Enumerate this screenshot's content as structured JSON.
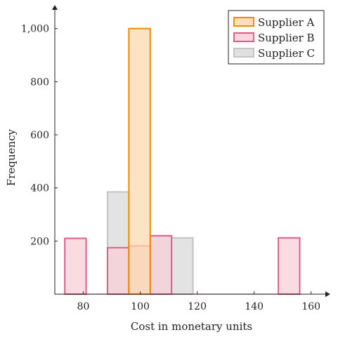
{
  "chart_data": {
    "type": "bar",
    "xlabel": "Cost in monetary units",
    "ylabel": "Frequency",
    "xlim": [
      70,
      165
    ],
    "ylim": [
      0,
      1060
    ],
    "xticks": [
      80,
      100,
      120,
      140,
      160
    ],
    "xtick_labels": [
      "80",
      "100",
      "120",
      "140",
      "160"
    ],
    "yticks": [
      200,
      400,
      600,
      800,
      1000
    ],
    "ytick_labels": [
      "200",
      "400",
      "600",
      "800",
      "1,000"
    ],
    "legend_position": "top-right",
    "series": [
      {
        "name": "Supplier A",
        "stroke": "#f08a00",
        "fill": "#fbd9b0",
        "bins": [
          {
            "from": 96,
            "to": 103.5,
            "value": 1000
          }
        ]
      },
      {
        "name": "Supplier B",
        "stroke": "#d9608a",
        "fill": "#f9cfd8",
        "bins": [
          {
            "from": 73.5,
            "to": 81,
            "value": 210
          },
          {
            "from": 88.5,
            "to": 96,
            "value": 175
          },
          {
            "from": 96,
            "to": 103.5,
            "value": 182
          },
          {
            "from": 103.5,
            "to": 111,
            "value": 220
          },
          {
            "from": 148.5,
            "to": 156,
            "value": 212
          }
        ]
      },
      {
        "name": "Supplier C",
        "stroke": "#c4c4c4",
        "fill": "#dadada",
        "bins": [
          {
            "from": 88.5,
            "to": 96,
            "value": 385
          },
          {
            "from": 96,
            "to": 103.5,
            "value": 180
          },
          {
            "from": 103.5,
            "to": 111,
            "value": 220
          },
          {
            "from": 111,
            "to": 118.5,
            "value": 212
          }
        ]
      }
    ]
  }
}
